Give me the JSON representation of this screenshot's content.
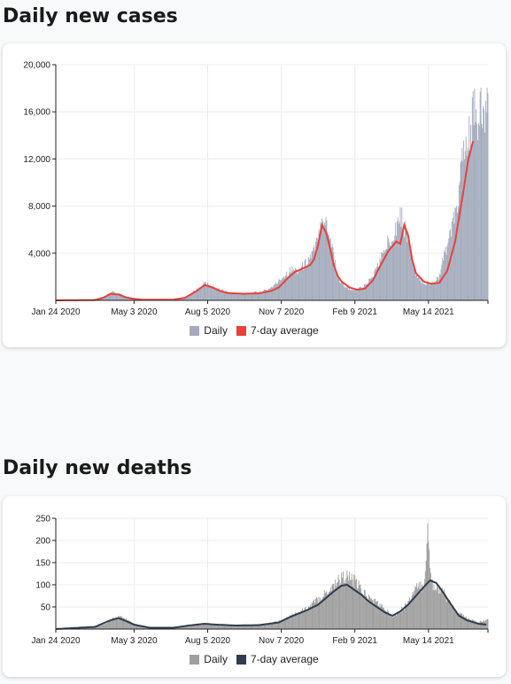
{
  "cases": {
    "title": "Daily new cases",
    "legend": {
      "daily": "Daily",
      "avg": "7-day average"
    },
    "colors": {
      "bar": "#a3abbd",
      "line": "#e8413b"
    },
    "chart_data": {
      "type": "bar",
      "x_ticks": [
        "Jan 24 2020",
        "May 3 2020",
        "Aug 5 2020",
        "Nov 7 2020",
        "Feb 9 2021",
        "May 14 2021"
      ],
      "y_ticks": [
        "20,000",
        "16,000",
        "12,000",
        "8,000",
        "4,000"
      ],
      "ylim": [
        0,
        20000
      ],
      "x_range_days": [
        0,
        552
      ],
      "tick_days": [
        0,
        100,
        194,
        288,
        382,
        476
      ],
      "series": [
        {
          "name": "Daily",
          "points": [
            [
              0,
              0
            ],
            [
              40,
              0
            ],
            [
              60,
              300
            ],
            [
              72,
              700
            ],
            [
              80,
              600
            ],
            [
              90,
              300
            ],
            [
              100,
              150
            ],
            [
              120,
              60
            ],
            [
              150,
              60
            ],
            [
              165,
              200
            ],
            [
              175,
              700
            ],
            [
              185,
              1100
            ],
            [
              190,
              1500
            ],
            [
              195,
              1300
            ],
            [
              205,
              1000
            ],
            [
              215,
              800
            ],
            [
              225,
              600
            ],
            [
              240,
              600
            ],
            [
              260,
              700
            ],
            [
              270,
              900
            ],
            [
              280,
              1300
            ],
            [
              290,
              2000
            ],
            [
              300,
              2600
            ],
            [
              310,
              2500
            ],
            [
              320,
              3200
            ],
            [
              330,
              4200
            ],
            [
              335,
              5200
            ],
            [
              340,
              7800
            ],
            [
              343,
              6000
            ],
            [
              345,
              7000
            ],
            [
              350,
              5500
            ],
            [
              355,
              4000
            ],
            [
              360,
              2000
            ],
            [
              365,
              1500
            ],
            [
              375,
              900
            ],
            [
              385,
              900
            ],
            [
              395,
              1300
            ],
            [
              405,
              2000
            ],
            [
              415,
              3500
            ],
            [
              425,
              5000
            ],
            [
              432,
              5800
            ],
            [
              440,
              7300
            ],
            [
              445,
              6300
            ],
            [
              450,
              5500
            ],
            [
              455,
              3300
            ],
            [
              460,
              2000
            ],
            [
              470,
              1500
            ],
            [
              480,
              1400
            ],
            [
              490,
              2100
            ],
            [
              500,
              4800
            ],
            [
              510,
              7000
            ],
            [
              520,
              12000
            ],
            [
              527,
              13500
            ],
            [
              530,
              14200
            ],
            [
              533,
              15700
            ]
          ]
        },
        {
          "name": "7-day average",
          "points": [
            [
              0,
              0
            ],
            [
              50,
              20
            ],
            [
              60,
              200
            ],
            [
              70,
              550
            ],
            [
              80,
              500
            ],
            [
              90,
              250
            ],
            [
              100,
              130
            ],
            [
              110,
              60
            ],
            [
              150,
              60
            ],
            [
              165,
              220
            ],
            [
              180,
              800
            ],
            [
              190,
              1300
            ],
            [
              200,
              1100
            ],
            [
              210,
              800
            ],
            [
              220,
              620
            ],
            [
              240,
              560
            ],
            [
              260,
              600
            ],
            [
              275,
              800
            ],
            [
              285,
              1100
            ],
            [
              295,
              1800
            ],
            [
              305,
              2400
            ],
            [
              315,
              2700
            ],
            [
              325,
              3000
            ],
            [
              330,
              3500
            ],
            [
              335,
              4700
            ],
            [
              340,
              6400
            ],
            [
              345,
              5800
            ],
            [
              350,
              4500
            ],
            [
              355,
              3000
            ],
            [
              360,
              2100
            ],
            [
              365,
              1600
            ],
            [
              375,
              1100
            ],
            [
              385,
              900
            ],
            [
              395,
              1000
            ],
            [
              405,
              1700
            ],
            [
              415,
              3000
            ],
            [
              425,
              4200
            ],
            [
              435,
              5000
            ],
            [
              440,
              4800
            ],
            [
              445,
              6400
            ],
            [
              450,
              5500
            ],
            [
              455,
              3500
            ],
            [
              460,
              2300
            ],
            [
              470,
              1600
            ],
            [
              480,
              1400
            ],
            [
              490,
              1500
            ],
            [
              500,
              2500
            ],
            [
              510,
              5000
            ],
            [
              520,
              9000
            ],
            [
              527,
              12000
            ],
            [
              533,
              13500
            ]
          ]
        }
      ]
    }
  },
  "deaths": {
    "title": "Daily new deaths",
    "legend": {
      "daily": "Daily",
      "avg": "7-day average"
    },
    "colors": {
      "bar": "#9e9e9e",
      "line": "#2f3d4c"
    },
    "chart_data": {
      "type": "bar",
      "x_ticks": [
        "Jan 24 2020",
        "May 3 2020",
        "Aug 5 2020",
        "Nov 7 2020",
        "Feb 9 2021",
        "May 14 2021"
      ],
      "y_ticks": [
        "250",
        "200",
        "150",
        "100",
        "50"
      ],
      "ylim": [
        0,
        250
      ],
      "x_range_days": [
        0,
        552
      ],
      "tick_days": [
        0,
        100,
        194,
        288,
        382,
        476
      ],
      "series": [
        {
          "name": "Daily",
          "points": [
            [
              0,
              0
            ],
            [
              40,
              2
            ],
            [
              60,
              10
            ],
            [
              70,
              20
            ],
            [
              80,
              28
            ],
            [
              90,
              22
            ],
            [
              100,
              10
            ],
            [
              120,
              3
            ],
            [
              150,
              3
            ],
            [
              170,
              6
            ],
            [
              190,
              12
            ],
            [
              200,
              10
            ],
            [
              210,
              8
            ],
            [
              230,
              8
            ],
            [
              250,
              8
            ],
            [
              270,
              12
            ],
            [
              285,
              18
            ],
            [
              300,
              30
            ],
            [
              320,
              45
            ],
            [
              330,
              60
            ],
            [
              340,
              75
            ],
            [
              350,
              90
            ],
            [
              360,
              110
            ],
            [
              370,
              120
            ],
            [
              380,
              110
            ],
            [
              390,
              90
            ],
            [
              400,
              70
            ],
            [
              410,
              60
            ],
            [
              420,
              45
            ],
            [
              430,
              30
            ],
            [
              440,
              40
            ],
            [
              450,
              60
            ],
            [
              460,
              90
            ],
            [
              470,
              100
            ],
            [
              475,
              215
            ],
            [
              480,
              105
            ],
            [
              490,
              90
            ],
            [
              500,
              70
            ],
            [
              510,
              40
            ],
            [
              520,
              30
            ],
            [
              530,
              20
            ],
            [
              540,
              15
            ],
            [
              550,
              20
            ]
          ]
        },
        {
          "name": "7-day average",
          "points": [
            [
              0,
              0
            ],
            [
              50,
              5
            ],
            [
              70,
              20
            ],
            [
              80,
              25
            ],
            [
              90,
              18
            ],
            [
              100,
              10
            ],
            [
              120,
              3
            ],
            [
              150,
              3
            ],
            [
              170,
              8
            ],
            [
              190,
              12
            ],
            [
              205,
              10
            ],
            [
              230,
              8
            ],
            [
              260,
              9
            ],
            [
              285,
              15
            ],
            [
              300,
              28
            ],
            [
              320,
              42
            ],
            [
              335,
              55
            ],
            [
              345,
              70
            ],
            [
              355,
              85
            ],
            [
              365,
              98
            ],
            [
              372,
              100
            ],
            [
              380,
              90
            ],
            [
              390,
              78
            ],
            [
              400,
              62
            ],
            [
              410,
              50
            ],
            [
              420,
              38
            ],
            [
              430,
              30
            ],
            [
              440,
              40
            ],
            [
              450,
              55
            ],
            [
              460,
              75
            ],
            [
              470,
              95
            ],
            [
              478,
              110
            ],
            [
              486,
              104
            ],
            [
              495,
              82
            ],
            [
              505,
              55
            ],
            [
              515,
              30
            ],
            [
              525,
              20
            ],
            [
              540,
              12
            ],
            [
              550,
              10
            ]
          ]
        }
      ]
    }
  }
}
